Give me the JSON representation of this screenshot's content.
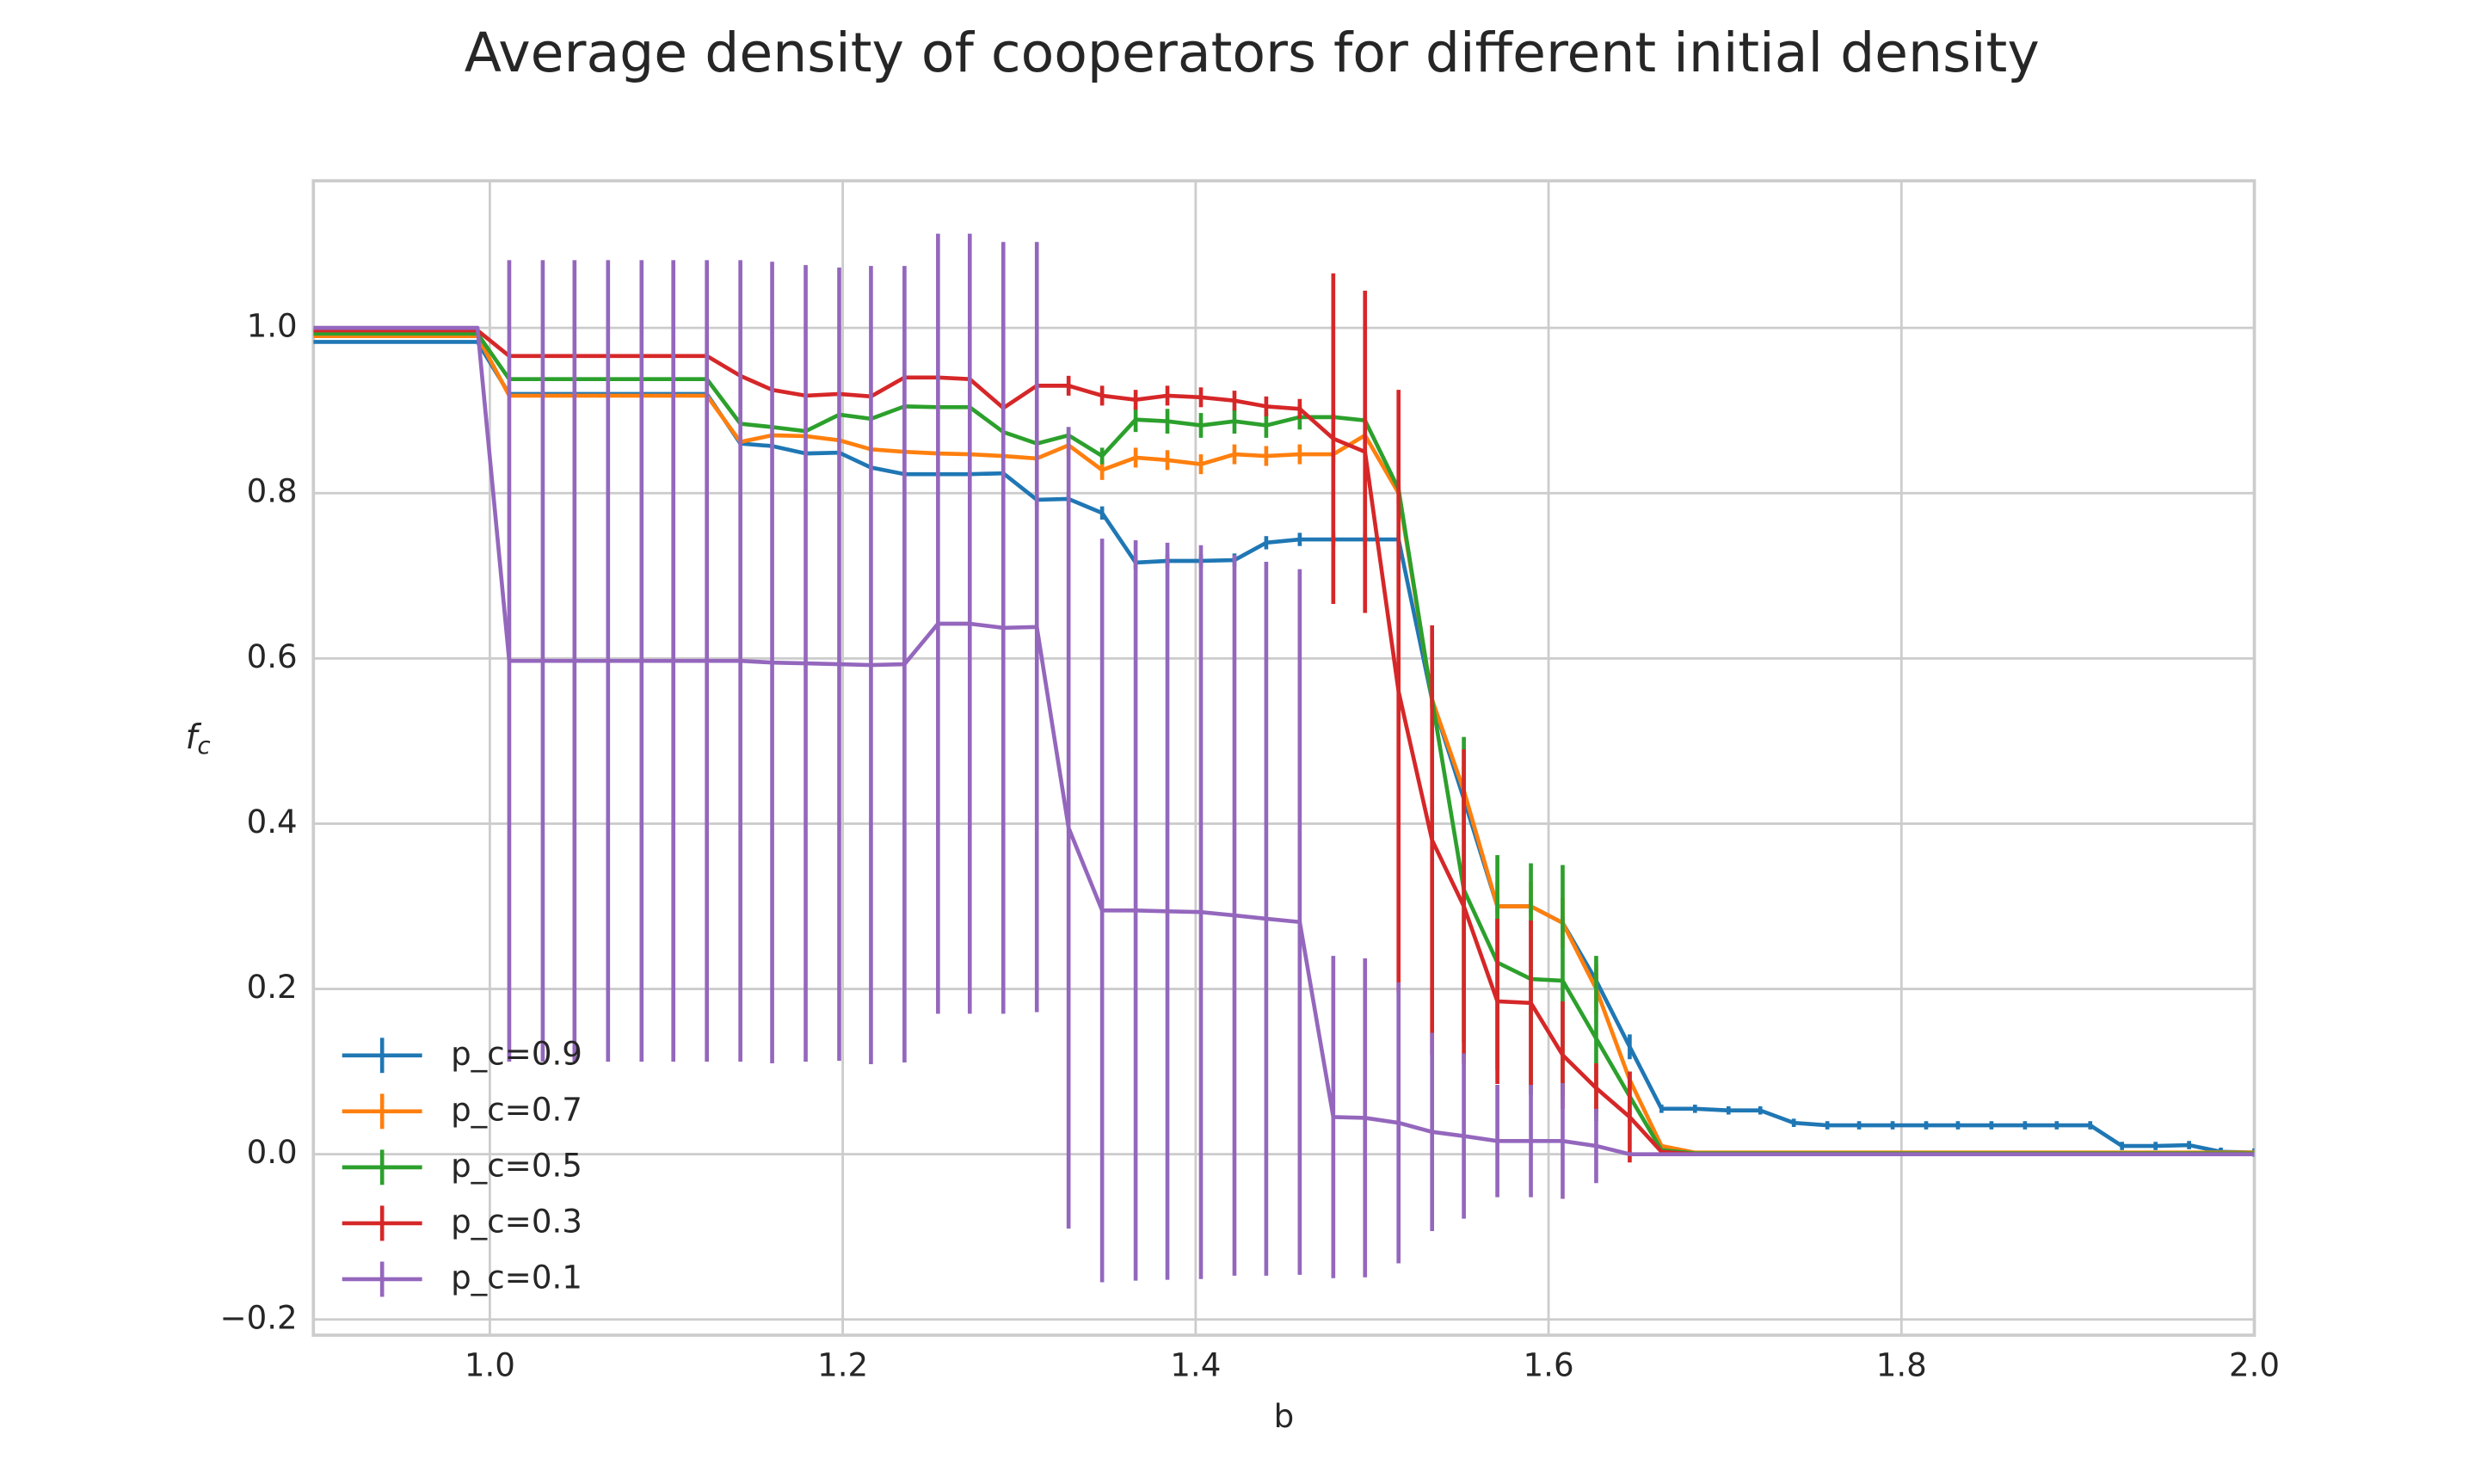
{
  "chart_data": {
    "type": "errorbar-line",
    "title": "Average density of cooperators for different initial density",
    "xlabel": "b",
    "ylabel": "f_c",
    "x": [
      0.9,
      0.993,
      1.011,
      1.03,
      1.048,
      1.067,
      1.086,
      1.104,
      1.123,
      1.142,
      1.16,
      1.179,
      1.198,
      1.216,
      1.235,
      1.254,
      1.272,
      1.291,
      1.31,
      1.328,
      1.347,
      1.366,
      1.384,
      1.403,
      1.422,
      1.44,
      1.459,
      1.478,
      1.496,
      1.515,
      1.534,
      1.552,
      1.571,
      1.59,
      1.608,
      1.627,
      1.646,
      1.664,
      1.683,
      1.702,
      1.72,
      1.739,
      1.758,
      1.776,
      1.795,
      1.814,
      1.832,
      1.851,
      1.87,
      1.888,
      1.907,
      1.925,
      1.944,
      1.963,
      1.981,
      2.0
    ],
    "series": [
      {
        "name": "p_c=0.9",
        "color": "#1f77b4",
        "values": [
          0.983,
          0.983,
          0.92,
          0.92,
          0.92,
          0.92,
          0.92,
          0.92,
          0.92,
          0.86,
          0.857,
          0.848,
          0.849,
          0.831,
          0.823,
          0.823,
          0.823,
          0.824,
          0.792,
          0.793,
          0.776,
          0.716,
          0.718,
          0.718,
          0.719,
          0.74,
          0.744,
          0.744,
          0.744,
          0.744,
          0.55,
          0.43,
          0.3,
          0.3,
          0.28,
          0.21,
          0.13,
          0.055,
          0.055,
          0.053,
          0.053,
          0.038,
          0.035,
          0.035,
          0.035,
          0.035,
          0.035,
          0.035,
          0.035,
          0.035,
          0.035,
          0.01,
          0.01,
          0.011,
          0.003,
          0.002
        ],
        "errors": [
          0,
          0,
          0,
          0,
          0,
          0,
          0,
          0,
          0,
          0,
          0,
          0,
          0,
          0,
          0,
          0,
          0,
          0,
          0.008,
          0.008,
          0.008,
          0.008,
          0.008,
          0.008,
          0.008,
          0.008,
          0.008,
          0.008,
          0.008,
          0.008,
          0.008,
          0.008,
          0.008,
          0.008,
          0.008,
          0.008,
          0.015,
          0.005,
          0.005,
          0.005,
          0.005,
          0.005,
          0.005,
          0.005,
          0.005,
          0.005,
          0.005,
          0.005,
          0.005,
          0.005,
          0.005,
          0.005,
          0.005,
          0.005,
          0.005,
          0.005
        ]
      },
      {
        "name": "p_c=0.7",
        "color": "#ff7f0e",
        "values": [
          0.99,
          0.99,
          0.918,
          0.918,
          0.918,
          0.918,
          0.918,
          0.918,
          0.918,
          0.862,
          0.87,
          0.869,
          0.864,
          0.853,
          0.85,
          0.848,
          0.847,
          0.845,
          0.842,
          0.858,
          0.828,
          0.843,
          0.84,
          0.835,
          0.847,
          0.845,
          0.847,
          0.847,
          0.87,
          0.8,
          0.55,
          0.44,
          0.3,
          0.3,
          0.28,
          0.2,
          0.09,
          0.01,
          0.002,
          0.002,
          0.002,
          0.002,
          0.002,
          0.002,
          0.002,
          0.002,
          0.002,
          0.002,
          0.002,
          0.002,
          0.002,
          0.002,
          0.002,
          0.002,
          0.002,
          0.002
        ],
        "errors": [
          0,
          0,
          0,
          0,
          0,
          0,
          0,
          0,
          0,
          0,
          0,
          0,
          0,
          0,
          0,
          0,
          0,
          0,
          0,
          0.012,
          0.012,
          0.012,
          0.012,
          0.012,
          0.012,
          0.012,
          0.012,
          0.012,
          0.012,
          0.012,
          0.012,
          0.03,
          0.03,
          0.03,
          0.03,
          0.03,
          0.01,
          0,
          0,
          0,
          0,
          0,
          0,
          0,
          0,
          0,
          0,
          0,
          0,
          0,
          0,
          0,
          0,
          0,
          0,
          0
        ]
      },
      {
        "name": "p_c=0.5",
        "color": "#2ca02c",
        "values": [
          0.993,
          0.993,
          0.938,
          0.938,
          0.938,
          0.938,
          0.938,
          0.938,
          0.938,
          0.884,
          0.88,
          0.875,
          0.895,
          0.89,
          0.905,
          0.904,
          0.904,
          0.874,
          0.86,
          0.87,
          0.845,
          0.889,
          0.887,
          0.882,
          0.887,
          0.882,
          0.892,
          0.892,
          0.888,
          0.805,
          0.55,
          0.32,
          0.232,
          0.212,
          0.21,
          0.14,
          0.07,
          0.005,
          0.001,
          0.001,
          0.001,
          0.001,
          0.001,
          0.001,
          0.001,
          0.001,
          0.001,
          0.001,
          0.001,
          0.001,
          0.001,
          0.001,
          0.001,
          0.001,
          0.001,
          0.001
        ],
        "errors": [
          0,
          0,
          0,
          0,
          0,
          0,
          0,
          0,
          0,
          0,
          0,
          0,
          0,
          0,
          0,
          0,
          0,
          0,
          0,
          0.01,
          0.01,
          0.015,
          0.015,
          0.015,
          0.015,
          0.015,
          0.015,
          0.005,
          0.005,
          0.005,
          0.01,
          0.185,
          0.13,
          0.14,
          0.14,
          0.1,
          0.03,
          0,
          0,
          0,
          0,
          0,
          0,
          0,
          0,
          0,
          0,
          0,
          0,
          0,
          0,
          0,
          0,
          0,
          0,
          0
        ]
      },
      {
        "name": "p_c=0.3",
        "color": "#d62728",
        "values": [
          0.997,
          0.997,
          0.966,
          0.966,
          0.966,
          0.966,
          0.966,
          0.966,
          0.966,
          0.942,
          0.925,
          0.918,
          0.92,
          0.917,
          0.94,
          0.94,
          0.938,
          0.903,
          0.93,
          0.93,
          0.918,
          0.913,
          0.918,
          0.916,
          0.912,
          0.905,
          0.902,
          0.866,
          0.85,
          0.56,
          0.38,
          0.3,
          0.185,
          0.183,
          0.12,
          0.08,
          0.045,
          0.003,
          0,
          0,
          0,
          0,
          0,
          0,
          0,
          0,
          0,
          0,
          0,
          0,
          0,
          0,
          0,
          0,
          0,
          0
        ],
        "errors": [
          0,
          0,
          0,
          0,
          0,
          0,
          0,
          0,
          0,
          0,
          0,
          0,
          0,
          0,
          0,
          0,
          0,
          0,
          0,
          0.012,
          0.012,
          0.012,
          0.012,
          0.012,
          0.012,
          0.012,
          0.012,
          0.2,
          0.195,
          0.365,
          0.26,
          0.19,
          0.1,
          0.1,
          0.065,
          0.03,
          0.055,
          0,
          0,
          0,
          0,
          0,
          0,
          0,
          0,
          0,
          0,
          0,
          0,
          0,
          0,
          0,
          0,
          0,
          0,
          0
        ]
      },
      {
        "name": "p_c=0.1",
        "color": "#9467bd",
        "values": [
          1.0,
          1.0,
          0.597,
          0.597,
          0.597,
          0.597,
          0.597,
          0.597,
          0.597,
          0.597,
          0.595,
          0.594,
          0.593,
          0.592,
          0.593,
          0.642,
          0.642,
          0.637,
          0.638,
          0.395,
          0.295,
          0.295,
          0.294,
          0.293,
          0.289,
          0.285,
          0.281,
          0.045,
          0.044,
          0.038,
          0.027,
          0.022,
          0.016,
          0.016,
          0.016,
          0.01,
          0,
          0,
          0,
          0,
          0,
          0,
          0,
          0,
          0,
          0,
          0,
          0,
          0,
          0,
          0,
          0,
          0,
          0,
          0,
          0
        ],
        "errors": [
          0,
          0,
          0.485,
          0.485,
          0.485,
          0.485,
          0.485,
          0.485,
          0.485,
          0.485,
          0.485,
          0.482,
          0.48,
          0.483,
          0.482,
          0.472,
          0.472,
          0.467,
          0.466,
          0.485,
          0.45,
          0.448,
          0.446,
          0.444,
          0.436,
          0.432,
          0.427,
          0.195,
          0.193,
          0.17,
          0.12,
          0.1,
          0.068,
          0.068,
          0.07,
          0.045,
          0,
          0,
          0,
          0,
          0,
          0,
          0,
          0,
          0,
          0,
          0,
          0,
          0,
          0,
          0,
          0,
          0,
          0,
          0,
          0
        ]
      }
    ],
    "xlim": [
      0.9,
      2.0
    ],
    "ylim": [
      -0.219,
      1.178
    ],
    "xticks": [
      {
        "value": 1.0,
        "label": "1.0"
      },
      {
        "value": 1.2,
        "label": "1.2"
      },
      {
        "value": 1.4,
        "label": "1.4"
      },
      {
        "value": 1.6,
        "label": "1.6"
      },
      {
        "value": 1.8,
        "label": "1.8"
      },
      {
        "value": 2.0,
        "label": "2.0"
      }
    ],
    "yticks": [
      {
        "value": -0.2,
        "label": "−0.2"
      },
      {
        "value": 0.0,
        "label": "0.0"
      },
      {
        "value": 0.2,
        "label": "0.2"
      },
      {
        "value": 0.4,
        "label": "0.4"
      },
      {
        "value": 0.6,
        "label": "0.6"
      },
      {
        "value": 0.8,
        "label": "0.8"
      },
      {
        "value": 1.0,
        "label": "1.0"
      }
    ],
    "grid": true,
    "legend": "lower left"
  }
}
